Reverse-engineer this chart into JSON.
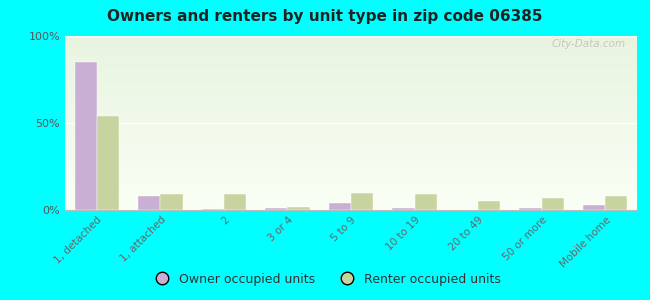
{
  "title": "Owners and renters by unit type in zip code 06385",
  "categories": [
    "1, detached",
    "1, attached",
    "2",
    "3 or 4",
    "5 to 9",
    "10 to 19",
    "20 to 49",
    "50 or more",
    "Mobile home"
  ],
  "owner_values": [
    85,
    8,
    0.5,
    1,
    4,
    1,
    0,
    1,
    3
  ],
  "renter_values": [
    54,
    9,
    9,
    2,
    10,
    9,
    5,
    7,
    8
  ],
  "owner_color": "#c9afd4",
  "renter_color": "#c8d4a0",
  "background_color": "#00ffff",
  "ylim": [
    0,
    100
  ],
  "yticks": [
    0,
    50,
    100
  ],
  "ytick_labels": [
    "0%",
    "50%",
    "100%"
  ],
  "bar_width": 0.35,
  "legend_owner": "Owner occupied units",
  "legend_renter": "Renter occupied units",
  "watermark": "City-Data.com"
}
